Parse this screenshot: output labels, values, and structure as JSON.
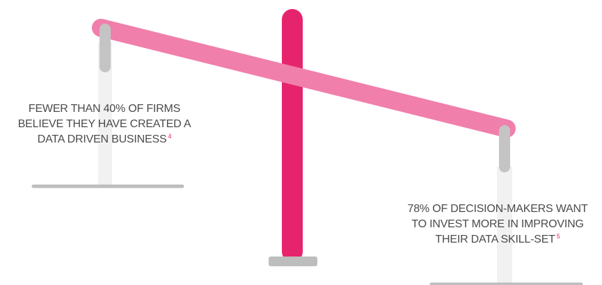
{
  "left_statement": {
    "lines": [
      "FEWER THAN 40% OF FIRMS",
      "BELIEVE THEY HAVE CREATED A",
      "DATA DRIVEN BUSINESS"
    ],
    "footnote": "4"
  },
  "right_statement": {
    "lines": [
      "78% OF DECISION-MAKERS WANT",
      "TO INVEST MORE IN IMPROVING",
      "THEIR DATA SKILL-SET"
    ],
    "footnote": "5"
  },
  "colors": {
    "beam": "#f07fab",
    "post": "#e6246e",
    "hanger": "#c4c4c4",
    "pan_line": "#bdbdbd",
    "post_base": "#bdbdbd",
    "shadow_column": "#f1f1f1",
    "text": "#4a4a4a",
    "footnote": "#e6246e"
  }
}
